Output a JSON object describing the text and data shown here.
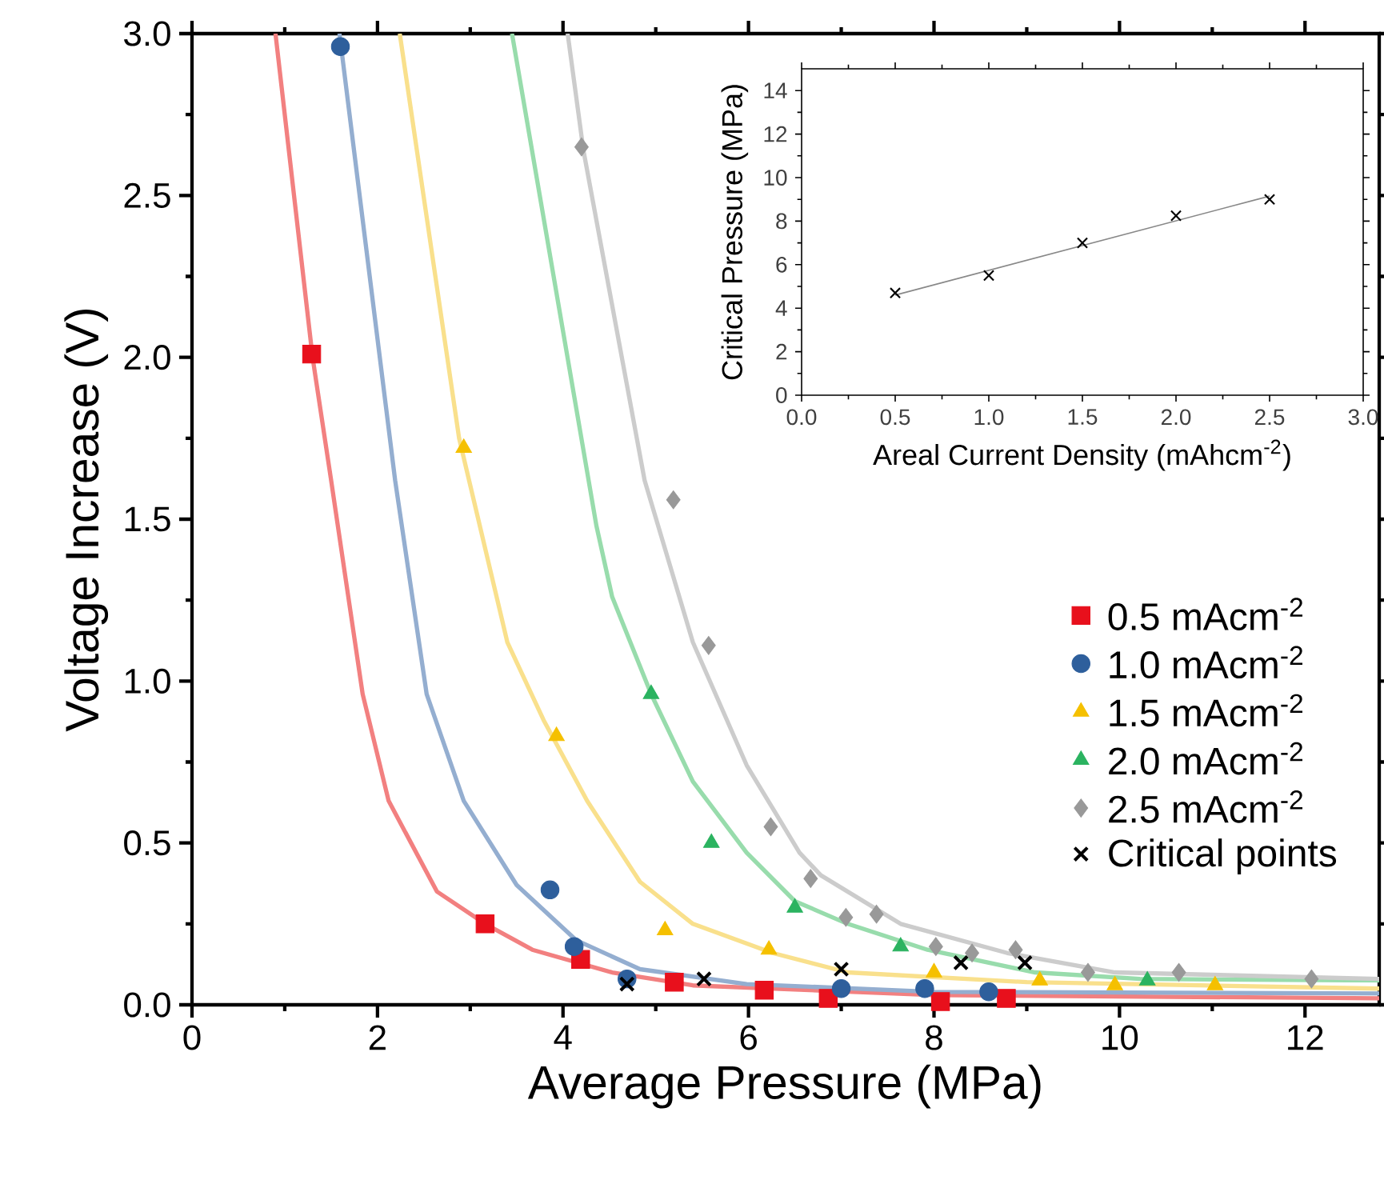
{
  "chart_data": [
    {
      "type": "scatter",
      "xlabel": "Average Pressure (MPa)",
      "ylabel": "Voltage Increase (V)",
      "xlim": [
        0,
        12.8
      ],
      "ylim": [
        0,
        3.0
      ],
      "xticks": [
        0,
        2,
        4,
        6,
        8,
        10,
        12
      ],
      "yticks": [
        {
          "value": 0,
          "label": "0.0"
        },
        {
          "value": 0.5,
          "label": "0.5"
        },
        {
          "value": 1.0,
          "label": "1.0"
        },
        {
          "value": 1.5,
          "label": "1.5"
        },
        {
          "value": 2.0,
          "label": "2.0"
        },
        {
          "value": 2.5,
          "label": "2.5"
        },
        {
          "value": 3.0,
          "label": "3.0"
        }
      ],
      "legend": "right",
      "series": [
        {
          "type": "line",
          "color": "#f28080",
          "line_style": "solid",
          "marker": "none",
          "x": [
            0.9,
            1.3,
            1.5,
            1.84,
            2.12,
            2.64,
            3.16,
            3.67,
            4.53,
            5.4,
            8.0,
            12.8
          ],
          "values": [
            3.0,
            2.0,
            1.62,
            0.96,
            0.63,
            0.35,
            0.25,
            0.17,
            0.1,
            0.06,
            0.03,
            0.02
          ]
        },
        {
          "type": "line",
          "color": "#94aed0",
          "line_style": "solid",
          "marker": "none",
          "x": [
            1.59,
            2.19,
            2.53,
            2.93,
            3.5,
            4.14,
            4.83,
            5.98,
            8.0,
            12.8
          ],
          "values": [
            3.0,
            1.62,
            0.96,
            0.63,
            0.37,
            0.2,
            0.11,
            0.064,
            0.04,
            0.035
          ]
        },
        {
          "type": "line",
          "color": "#f9e08c",
          "line_style": "solid",
          "marker": "none",
          "x": [
            2.24,
            2.88,
            3.4,
            3.79,
            4.26,
            4.83,
            5.4,
            6.26,
            7.07,
            9.0,
            12.8
          ],
          "values": [
            3.0,
            1.75,
            1.12,
            0.88,
            0.63,
            0.38,
            0.25,
            0.16,
            0.1,
            0.07,
            0.05
          ]
        },
        {
          "type": "line",
          "color": "#98dcac",
          "line_style": "solid",
          "marker": "none",
          "x": [
            3.45,
            4.36,
            4.53,
            4.95,
            5.4,
            5.98,
            6.5,
            7.07,
            7.93,
            9.09,
            10.22,
            12.8
          ],
          "values": [
            3.0,
            1.48,
            1.26,
            0.96,
            0.69,
            0.47,
            0.32,
            0.25,
            0.17,
            0.1,
            0.08,
            0.075
          ]
        },
        {
          "type": "line",
          "color": "#cccccc",
          "line_style": "solid",
          "marker": "none",
          "x": [
            4.05,
            4.22,
            4.88,
            5.4,
            5.98,
            6.55,
            6.78,
            7.64,
            8.79,
            9.95,
            12.8
          ],
          "values": [
            3.0,
            2.64,
            1.62,
            1.12,
            0.74,
            0.47,
            0.4,
            0.25,
            0.16,
            0.1,
            0.08
          ]
        },
        {
          "name": "0.5 mAcm$^{-2}$",
          "color": "#e8101c",
          "marker": "square",
          "x": [
            1.29,
            3.16,
            4.19,
            5.2,
            6.17,
            6.86,
            8.07,
            8.78
          ],
          "values": [
            2.01,
            0.25,
            0.14,
            0.07,
            0.045,
            0.02,
            0.01,
            0.02
          ]
        },
        {
          "name": "1.0 mAcm$^{-2}$",
          "color": "#2e5f9c",
          "marker": "circle",
          "x": [
            1.6,
            3.86,
            4.12,
            4.69,
            7.0,
            7.9,
            8.59
          ],
          "values": [
            2.96,
            0.355,
            0.18,
            0.08,
            0.05,
            0.05,
            0.04
          ]
        },
        {
          "name": "1.5 mAcm$^{-2}$",
          "color": "#f5c000",
          "marker": "triangle",
          "x": [
            2.93,
            3.93,
            5.1,
            6.22,
            8.0,
            9.14,
            9.95,
            11.03
          ],
          "values": [
            1.72,
            0.83,
            0.23,
            0.17,
            0.1,
            0.075,
            0.06,
            0.06
          ]
        },
        {
          "name": "2.0 mAcm$^{-2}$",
          "color": "#2bb360",
          "marker": "triangle",
          "x": [
            4.95,
            5.6,
            6.5,
            7.64,
            10.3
          ],
          "values": [
            0.96,
            0.5,
            0.3,
            0.18,
            0.075
          ]
        },
        {
          "name": "2.5 mAcm$^{-2}$",
          "color": "#999999",
          "marker": "diamond",
          "x": [
            4.2,
            5.19,
            5.57,
            6.24,
            6.67,
            7.05,
            7.38,
            8.02,
            8.41,
            8.88,
            9.66,
            10.64,
            12.07
          ],
          "values": [
            2.65,
            1.56,
            1.11,
            0.55,
            0.39,
            0.27,
            0.28,
            0.18,
            0.16,
            0.17,
            0.1,
            0.1,
            0.08
          ]
        },
        {
          "name": "Critical points",
          "color": "#000000",
          "marker": "cross",
          "x": [
            4.69,
            5.52,
            7.0,
            8.29,
            8.98
          ],
          "values": [
            0.064,
            0.08,
            0.11,
            0.13,
            0.13
          ]
        }
      ]
    },
    {
      "type": "scatter",
      "xlabel": "Areal Current Density (mAhcm$^{-2}$)",
      "ylabel": "Critical Pressure (MPa)",
      "xlim": [
        0,
        3
      ],
      "ylim": [
        0,
        15
      ],
      "xticks": [
        {
          "value": 0,
          "label": "0.0"
        },
        {
          "value": 0.5,
          "label": "0.5"
        },
        {
          "value": 1.0,
          "label": "1.0"
        },
        {
          "value": 1.5,
          "label": "1.5"
        },
        {
          "value": 2.0,
          "label": "2.0"
        },
        {
          "value": 2.5,
          "label": "2.5"
        },
        {
          "value": 3.0,
          "label": "3.0"
        }
      ],
      "yticks": [
        0,
        2,
        4,
        6,
        8,
        10,
        12,
        14
      ],
      "series": [
        {
          "type": "line",
          "color": "#888888",
          "line_style": "solid",
          "marker": "none",
          "x": [
            0.5,
            2.5
          ],
          "values": [
            4.6,
            9.15
          ]
        },
        {
          "color": "#000000",
          "marker": "cross",
          "x": [
            0.5,
            1.0,
            1.5,
            2.0,
            2.5
          ],
          "values": [
            4.7,
            5.5,
            7.0,
            8.25,
            9.0
          ]
        }
      ]
    }
  ]
}
